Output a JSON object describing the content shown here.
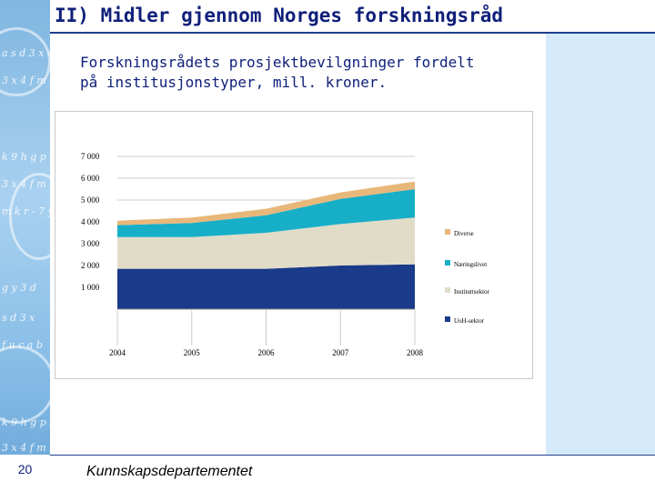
{
  "slide": {
    "title": "II) Midler gjennom Norges forskningsråd",
    "subtitle_line1": "Forskningsrådets prosjektbevilgninger fordelt",
    "subtitle_line2": "på institusjonstyper, mill. kroner.",
    "page_number": "20",
    "footer": "Kunnskapsdepartementet"
  },
  "colors": {
    "uoh": "#1a3a8a",
    "instituttsektor": "#e0dcc8",
    "naeringslivet": "#17afc8",
    "diverse": "#e8b77a",
    "title": "#10207a"
  },
  "chart_data": {
    "type": "area",
    "stacked": true,
    "title": "",
    "xlabel": "",
    "ylabel": "",
    "x": [
      "2004",
      "2005",
      "2006",
      "2007",
      "2008"
    ],
    "ylim": [
      0,
      7000
    ],
    "yticks": [
      "1 000",
      "2 000",
      "3 000",
      "4 000",
      "5 000",
      "6 000",
      "7 000"
    ],
    "grid": "horizontal",
    "legend_position": "right",
    "series": [
      {
        "name": "UoH-sektor",
        "color": "#1a3a8a",
        "values": [
          1850,
          1850,
          1850,
          2000,
          2050
        ]
      },
      {
        "name": "Instituttsektor",
        "color": "#e0dcc8",
        "values": [
          1450,
          1450,
          1650,
          1900,
          2150
        ]
      },
      {
        "name": "Næringslivet",
        "color": "#17afc8",
        "values": [
          550,
          650,
          800,
          1150,
          1300
        ]
      },
      {
        "name": "Diverse",
        "color": "#e8b77a",
        "values": [
          200,
          250,
          300,
          300,
          350
        ]
      }
    ],
    "legend_order": [
      "Diverse",
      "Næringslivet",
      "Instituttsektor",
      "UoH-sektor"
    ]
  }
}
